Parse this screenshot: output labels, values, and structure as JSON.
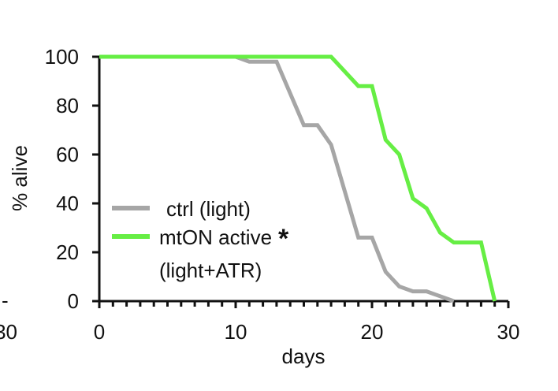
{
  "chart_data": {
    "type": "line",
    "xlabel": "days",
    "ylabel": "% alive",
    "xlim": [
      0,
      30
    ],
    "ylim": [
      0,
      100
    ],
    "x_ticks": [
      0,
      10,
      20,
      30
    ],
    "y_ticks": [
      0,
      20,
      40,
      60,
      80,
      100
    ],
    "grid": false,
    "legend_position": "bottom-left",
    "series": [
      {
        "name": "ctrl (light)",
        "color": "#a6a6a6",
        "x": [
          0,
          10,
          11,
          13,
          15,
          16,
          17,
          19,
          20,
          21,
          22,
          23,
          24,
          25,
          26
        ],
        "y": [
          100,
          100,
          98,
          98,
          72,
          72,
          64,
          26,
          26,
          12,
          6,
          4,
          4,
          2,
          0
        ]
      },
      {
        "name": "mtON active",
        "name_continuation": "(light+ATR)",
        "significance_marker": "*",
        "color": "#66ee44",
        "x": [
          0,
          17,
          19,
          20,
          21,
          22,
          23,
          24,
          25,
          26,
          27,
          28,
          29
        ],
        "y": [
          100,
          100,
          88,
          88,
          66,
          60,
          42,
          38,
          28,
          24,
          24,
          24,
          0
        ]
      }
    ]
  },
  "edge_fragments": {
    "left_zero_fragment": "30",
    "left_y_fragment": "-"
  }
}
